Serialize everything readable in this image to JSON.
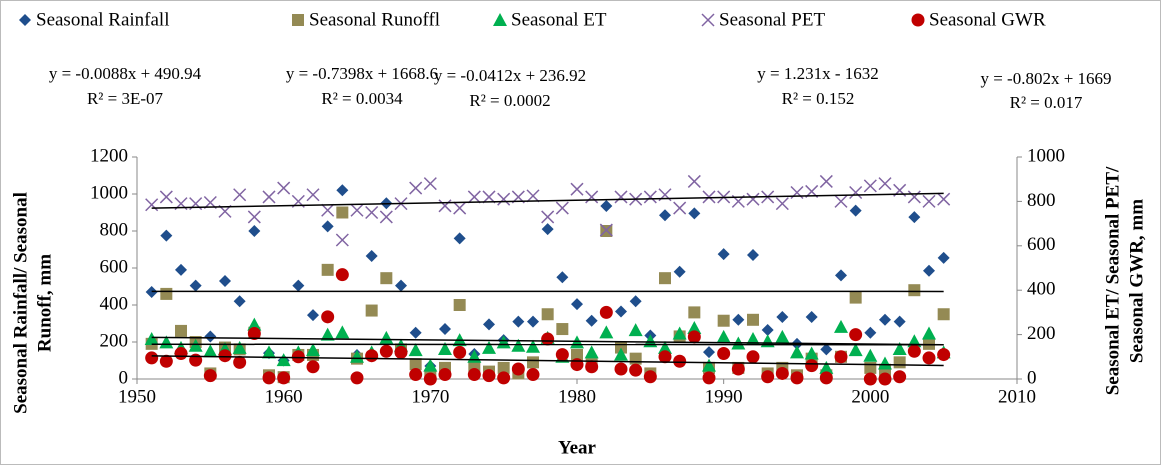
{
  "chart_data": {
    "type": "scatter",
    "x": [
      1951,
      1952,
      1953,
      1954,
      1955,
      1956,
      1957,
      1958,
      1959,
      1960,
      1961,
      1962,
      1963,
      1964,
      1965,
      1966,
      1967,
      1968,
      1969,
      1970,
      1971,
      1972,
      1973,
      1974,
      1975,
      1976,
      1977,
      1978,
      1979,
      1980,
      1981,
      1982,
      1983,
      1984,
      1985,
      1986,
      1987,
      1988,
      1989,
      1990,
      1991,
      1992,
      1993,
      1994,
      1995,
      1996,
      1997,
      1998,
      1999,
      2000,
      2001,
      2002,
      2003,
      2004,
      2005
    ],
    "xlabel": "Year",
    "ylabel": [
      "Seasonal Rainfall/ Seasonal",
      "Runoff, mm"
    ],
    "y2label": [
      "Seasonal ET/ Seasonal PET/",
      "Seasonal GWR, mm"
    ],
    "xlim": [
      1950,
      2010
    ],
    "xticks": [
      1950,
      1960,
      1970,
      1980,
      1990,
      2000,
      2010
    ],
    "ylim": [
      0,
      1200
    ],
    "yticks": [
      0,
      200,
      400,
      600,
      800,
      1000,
      1200
    ],
    "y2lim": [
      0,
      1000
    ],
    "y2ticks": [
      0,
      200,
      400,
      600,
      800,
      1000
    ],
    "series": [
      {
        "name": "Seasonal Rainfall",
        "color": "#1f4e8c",
        "marker": "diamond",
        "axis": "y",
        "values": [
          470,
          775,
          590,
          505,
          230,
          530,
          420,
          800,
          140,
          100,
          505,
          345,
          825,
          1020,
          130,
          665,
          950,
          505,
          250,
          70,
          270,
          760,
          135,
          295,
          210,
          310,
          310,
          810,
          550,
          405,
          315,
          935,
          365,
          420,
          235,
          885,
          580,
          895,
          145,
          675,
          320,
          670,
          265,
          335,
          190,
          335,
          160,
          560,
          910,
          250,
          320,
          310,
          875,
          585,
          655
        ],
        "trendline": {
          "equation": "y = -0.0088x + 490.94",
          "r2": "R² = 3E-07",
          "slope": -0.0088,
          "intercept": 490.94
        }
      },
      {
        "name": "Seasonal Runoffl",
        "color": "#948a54",
        "marker": "square",
        "axis": "y",
        "values": [
          190,
          460,
          260,
          200,
          30,
          170,
          160,
          250,
          20,
          10,
          130,
          130,
          590,
          900,
          110,
          370,
          545,
          160,
          80,
          20,
          60,
          400,
          60,
          40,
          60,
          30,
          90,
          350,
          270,
          130,
          80,
          800,
          170,
          110,
          30,
          545,
          230,
          360,
          60,
          315,
          60,
          320,
          30,
          60,
          20,
          110,
          20,
          120,
          440,
          60,
          50,
          90,
          480,
          190,
          350
        ],
        "trendline": {
          "equation": "y = -0.7398x + 1668.6",
          "r2": "R² = 0.0034",
          "slope": -0.7398,
          "intercept": 1668.6
        }
      },
      {
        "name": "Seasonal ET",
        "color": "#00b050",
        "marker": "triangle",
        "axis": "y2",
        "values": [
          180,
          165,
          140,
          150,
          125,
          135,
          140,
          245,
          120,
          85,
          120,
          130,
          200,
          210,
          100,
          120,
          185,
          150,
          130,
          60,
          135,
          175,
          100,
          140,
          165,
          150,
          145,
          185,
          100,
          165,
          120,
          210,
          110,
          220,
          170,
          140,
          205,
          230,
          60,
          190,
          160,
          180,
          170,
          190,
          120,
          115,
          50,
          235,
          130,
          105,
          70,
          135,
          170,
          205,
          120
        ],
        "trendline": {
          "equation": "y = -0.0412x + 236.92",
          "r2": "R² = 0.0002",
          "slope": -0.0412,
          "intercept": 236.92
        }
      },
      {
        "name": "Seasonal PET",
        "color": "#8064a2",
        "marker": "cross",
        "axis": "y2",
        "values": [
          785,
          820,
          790,
          790,
          795,
          755,
          830,
          730,
          820,
          860,
          800,
          830,
          760,
          626,
          760,
          750,
          730,
          790,
          860,
          880,
          780,
          770,
          820,
          820,
          810,
          820,
          825,
          730,
          770,
          855,
          820,
          671,
          820,
          810,
          820,
          830,
          770,
          890,
          820,
          820,
          800,
          810,
          820,
          790,
          840,
          845,
          890,
          800,
          840,
          870,
          880,
          850,
          820,
          800,
          810
        ],
        "trendline": {
          "equation": "y = 1.231x - 1632",
          "r2": "R² = 0.152",
          "slope": 1.231,
          "intercept": -1632
        }
      },
      {
        "name": "Seasonal GWR",
        "color": "#c00000",
        "marker": "circle",
        "axis": "y2",
        "values": [
          95,
          80,
          115,
          85,
          15,
          105,
          75,
          205,
          5,
          5,
          100,
          55,
          280,
          470,
          5,
          105,
          125,
          120,
          20,
          0,
          20,
          120,
          20,
          15,
          5,
          45,
          20,
          180,
          110,
          65,
          55,
          300,
          45,
          40,
          10,
          100,
          80,
          190,
          5,
          115,
          45,
          100,
          10,
          25,
          5,
          60,
          5,
          100,
          200,
          0,
          0,
          10,
          125,
          95,
          110
        ],
        "trendline": {
          "equation": "y = -0.802x + 1669",
          "r2": "R² = 0.017",
          "slope": -0.802,
          "intercept": 1669
        }
      }
    ]
  }
}
